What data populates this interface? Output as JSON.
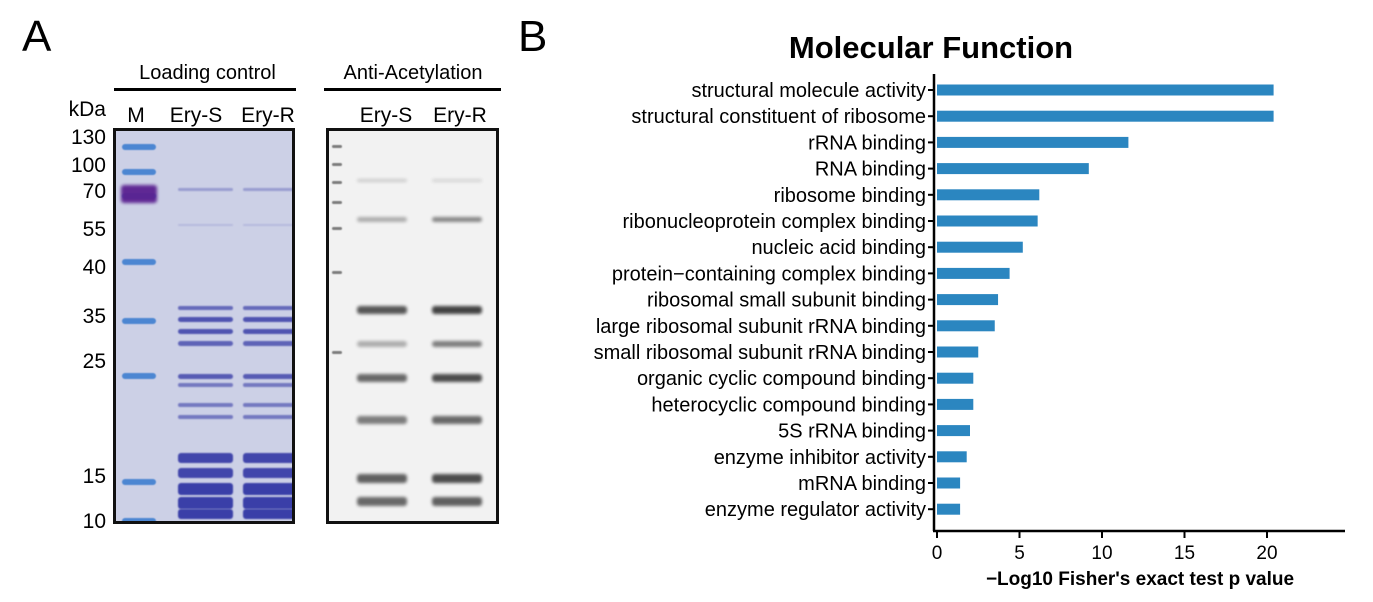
{
  "panels": {
    "a": "A",
    "b": "B"
  },
  "gel": {
    "loading_control_title": "Loading control",
    "anti_acetylation_title": "Anti-Acetylation",
    "kda_label": "kDa",
    "lane_m": "M",
    "lane_ery_s": "Ery-S",
    "lane_ery_r": "Ery-R",
    "wb_lane_ery_s": "Ery-S",
    "wb_lane_ery_r": "Ery-R",
    "markers": [
      "130",
      "100",
      "70",
      "55",
      "40",
      "35",
      "25",
      "15",
      "10"
    ]
  },
  "colors": {
    "bar": "#2b86c0",
    "coomassie": "#3a3fa8",
    "ladder": "#3f7fd0",
    "western": "#303030"
  },
  "chart_data": {
    "type": "bar",
    "orientation": "horizontal",
    "title": "Molecular Function",
    "xlabel": "−Log10 Fisher's exact test p value",
    "ylabel": "",
    "xlim": [
      0,
      24
    ],
    "xticks": [
      "0",
      "5",
      "10",
      "15",
      "20"
    ],
    "categories": [
      "structural molecule activity",
      "structural constituent of ribosome",
      "rRNA binding",
      "RNA binding",
      "ribosome binding",
      "ribonucleoprotein complex binding",
      "nucleic acid binding",
      "protein−containing complex binding",
      "ribosomal small subunit binding",
      "large ribosomal subunit rRNA binding",
      "small ribosomal subunit rRNA binding",
      "organic cyclic compound binding",
      "heterocyclic compound binding",
      "5S rRNA binding",
      "enzyme inhibitor activity",
      "mRNA binding",
      "enzyme regulator activity"
    ],
    "values": [
      20.4,
      20.4,
      11.6,
      9.2,
      6.2,
      6.1,
      5.2,
      4.4,
      3.7,
      3.5,
      2.5,
      2.2,
      2.2,
      2.0,
      1.8,
      1.4,
      1.4
    ],
    "grid": false
  }
}
